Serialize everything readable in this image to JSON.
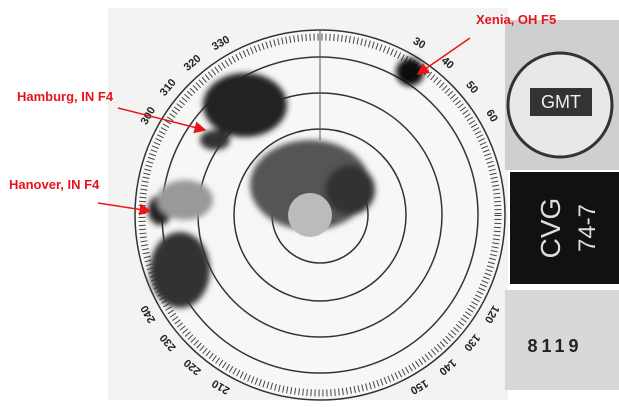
{
  "annotations": [
    {
      "label": "Xenia, OH F5"
    },
    {
      "label": "Hamburg, IN F4"
    },
    {
      "label": "Hanover, IN F4"
    }
  ],
  "azimuth_labels": [
    "30",
    "40",
    "50",
    "60",
    "120",
    "130",
    "140",
    "150",
    "210",
    "220",
    "230",
    "240",
    "300",
    "310",
    "320",
    "330"
  ],
  "instrument": {
    "clock": "GMT",
    "station": "CVG",
    "code": "74-7",
    "counter": "8119"
  }
}
